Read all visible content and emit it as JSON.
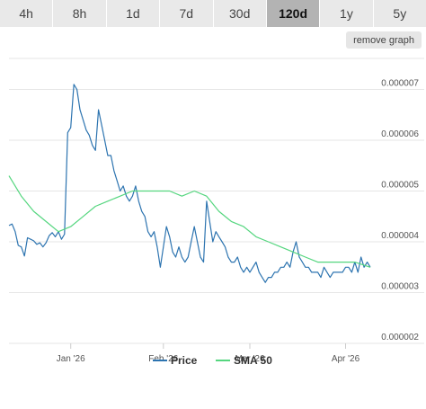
{
  "range_tabs": [
    "4h",
    "8h",
    "1d",
    "7d",
    "30d",
    "120d",
    "1y",
    "5y"
  ],
  "active_tab": "120d",
  "remove_graph_label": "remove graph",
  "colors": {
    "price": "#2d74b0",
    "sma": "#55d67f",
    "grid": "#e6e6e6",
    "active_tab": "#b3b3b3"
  },
  "chart_data": {
    "type": "line",
    "x_ticks": [
      "Jan '26",
      "Feb '26",
      "Mar '26",
      "Apr '26"
    ],
    "x_tick_days": [
      20,
      50,
      78,
      109
    ],
    "x_range": [
      0,
      117
    ],
    "y_ticks": [
      "0.000002",
      "0.000003",
      "0.000004",
      "0.000005",
      "0.000006",
      "0.000007"
    ],
    "y_tick_values": [
      2e-06,
      3e-06,
      4e-06,
      5e-06,
      6e-06,
      7e-06
    ],
    "ylim": [
      2e-06,
      7.7e-06
    ],
    "legend_position": "bottom-center",
    "grid": true,
    "series": [
      {
        "name": "Price",
        "x": [
          0,
          1,
          2,
          3,
          4,
          5,
          6,
          7,
          8,
          9,
          10,
          11,
          12,
          13,
          14,
          15,
          16,
          17,
          18,
          19,
          20,
          21,
          22,
          23,
          24,
          25,
          26,
          27,
          28,
          29,
          30,
          31,
          32,
          33,
          34,
          35,
          36,
          37,
          38,
          39,
          40,
          41,
          42,
          43,
          44,
          45,
          46,
          47,
          48,
          49,
          50,
          51,
          52,
          53,
          54,
          55,
          56,
          57,
          58,
          59,
          60,
          61,
          62,
          63,
          64,
          65,
          66,
          67,
          68,
          69,
          70,
          71,
          72,
          73,
          74,
          75,
          76,
          77,
          78,
          79,
          80,
          81,
          82,
          83,
          84,
          85,
          86,
          87,
          88,
          89,
          90,
          91,
          92,
          93,
          94,
          95,
          96,
          97,
          98,
          99,
          100,
          101,
          102,
          103,
          104,
          105,
          106,
          107,
          108,
          109,
          110,
          111,
          112,
          113,
          114,
          115,
          116,
          117
        ],
        "values": [
          4.32e-06,
          4.35e-06,
          4.2e-06,
          3.93e-06,
          3.9e-06,
          3.72e-06,
          4.08e-06,
          4.05e-06,
          4.02e-06,
          3.95e-06,
          3.98e-06,
          3.9e-06,
          3.98e-06,
          4.12e-06,
          4.18e-06,
          4.1e-06,
          4.2e-06,
          4.05e-06,
          4.15e-06,
          6.15e-06,
          6.25e-06,
          7.1e-06,
          7e-06,
          6.6e-06,
          6.4e-06,
          6.2e-06,
          6.1e-06,
          5.9e-06,
          5.8e-06,
          6.6e-06,
          6.3e-06,
          6e-06,
          5.7e-06,
          5.7e-06,
          5.4e-06,
          5.2e-06,
          5e-06,
          5.1e-06,
          4.9e-06,
          4.8e-06,
          4.9e-06,
          5.1e-06,
          4.8e-06,
          4.6e-06,
          4.5e-06,
          4.2e-06,
          4.1e-06,
          4.2e-06,
          3.9e-06,
          3.5e-06,
          3.9e-06,
          4.3e-06,
          4.1e-06,
          3.8e-06,
          3.7e-06,
          3.9e-06,
          3.7e-06,
          3.6e-06,
          3.7e-06,
          4e-06,
          4.3e-06,
          4e-06,
          3.7e-06,
          3.6e-06,
          4.8e-06,
          4.4e-06,
          4e-06,
          4.2e-06,
          4.1e-06,
          4e-06,
          3.9e-06,
          3.7e-06,
          3.6e-06,
          3.6e-06,
          3.7e-06,
          3.5e-06,
          3.4e-06,
          3.5e-06,
          3.4e-06,
          3.5e-06,
          3.6e-06,
          3.4e-06,
          3.3e-06,
          3.2e-06,
          3.3e-06,
          3.3e-06,
          3.4e-06,
          3.4e-06,
          3.5e-06,
          3.5e-06,
          3.6e-06,
          3.5e-06,
          3.8e-06,
          4e-06,
          3.7e-06,
          3.6e-06,
          3.5e-06,
          3.5e-06,
          3.4e-06,
          3.4e-06,
          3.4e-06,
          3.3e-06,
          3.5e-06,
          3.4e-06,
          3.3e-06,
          3.4e-06,
          3.4e-06,
          3.4e-06,
          3.4e-06,
          3.5e-06,
          3.5e-06,
          3.4e-06,
          3.6e-06,
          3.4e-06,
          3.7e-06,
          3.5e-06,
          3.6e-06,
          3.5e-06
        ]
      },
      {
        "name": "SMA 50",
        "x": [
          0,
          4,
          8,
          12,
          16,
          20,
          24,
          28,
          32,
          36,
          40,
          44,
          48,
          52,
          56,
          60,
          64,
          68,
          72,
          76,
          80,
          84,
          88,
          92,
          96,
          100,
          104,
          108,
          112,
          117
        ],
        "values": [
          5.3e-06,
          4.9e-06,
          4.6e-06,
          4.4e-06,
          4.2e-06,
          4.3e-06,
          4.5e-06,
          4.7e-06,
          4.8e-06,
          4.9e-06,
          5e-06,
          5e-06,
          5e-06,
          5e-06,
          4.9e-06,
          5e-06,
          4.9e-06,
          4.6e-06,
          4.4e-06,
          4.3e-06,
          4.1e-06,
          4e-06,
          3.9e-06,
          3.8e-06,
          3.7e-06,
          3.6e-06,
          3.6e-06,
          3.6e-06,
          3.6e-06,
          3.5e-06
        ]
      }
    ]
  }
}
